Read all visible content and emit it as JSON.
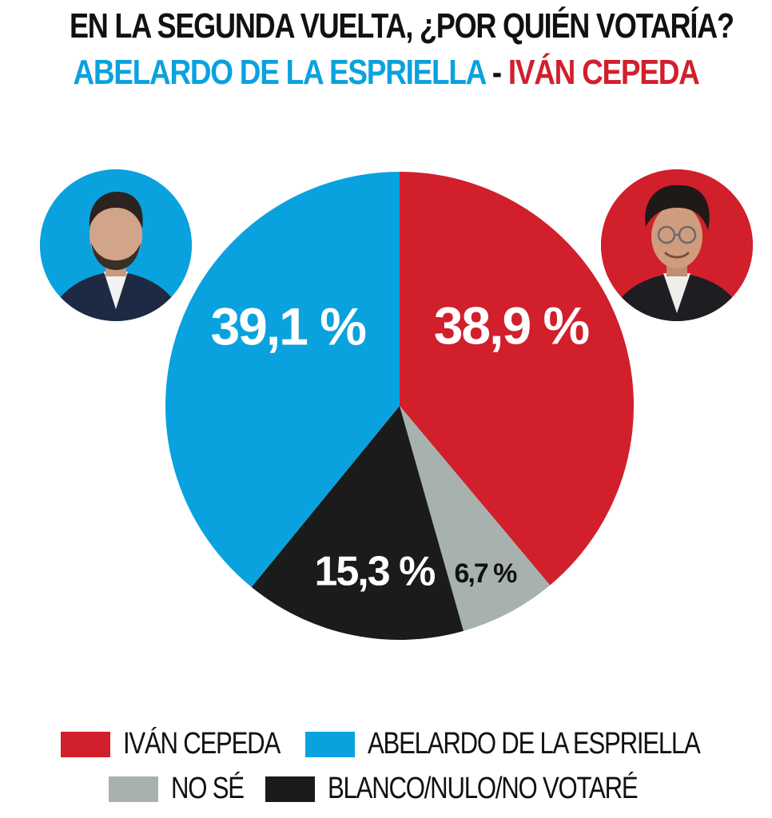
{
  "header": {
    "question": "EN LA SEGUNDA VUELTA, ¿POR QUIÉN VOTARÍA?",
    "candidate_a": "ABELARDO DE LA ESPRIELLA",
    "separator": "-",
    "candidate_b": "IVÁN CEPEDA"
  },
  "colors": {
    "cepeda": "#d11f2c",
    "espriella": "#0aa2de",
    "no_se": "#a7b2ae",
    "blanco": "#1b1b1b"
  },
  "chart_data": {
    "type": "pie",
    "title": "EN LA SEGUNDA VUELTA, ¿POR QUIÉN VOTARÍA?",
    "slices": [
      {
        "name": "IVÁN CEPEDA",
        "value": 38.9,
        "label": "38,9 %",
        "color": "#d11f2c"
      },
      {
        "name": "NO SÉ",
        "value": 6.7,
        "label": "6,7 %",
        "color": "#a7b2ae"
      },
      {
        "name": "BLANCO/NULO/NO VOTARÉ",
        "value": 15.3,
        "label": "15,3 %",
        "color": "#1b1b1b"
      },
      {
        "name": "ABELARDO DE LA ESPRIELLA",
        "value": 39.1,
        "label": "39,1 %",
        "color": "#0aa2de"
      }
    ],
    "legend_placement": "bottom"
  },
  "legend": [
    {
      "label": "IVÁN CEPEDA",
      "color": "#d11f2c"
    },
    {
      "label": "ABELARDO DE LA ESPRIELLA",
      "color": "#0aa2de"
    },
    {
      "label": "NO SÉ",
      "color": "#a7b2ae"
    },
    {
      "label": "BLANCO/NULO/NO VOTARÉ",
      "color": "#1b1b1b"
    }
  ]
}
